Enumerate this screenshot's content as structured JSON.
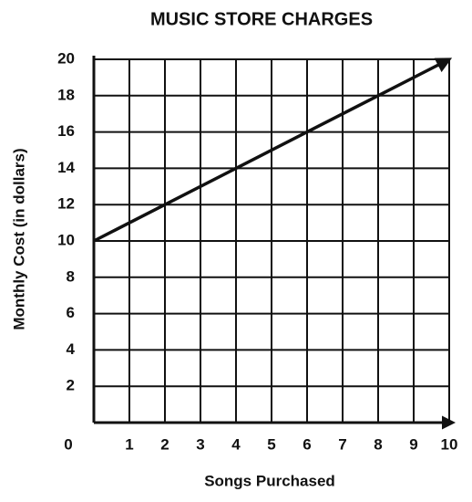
{
  "chart_data": {
    "type": "line",
    "title": "MUSIC STORE CHARGES",
    "x_label": "Songs Purchased",
    "y_label": "Monthly Cost (in dollars)",
    "x": [
      0,
      2,
      4,
      6,
      8,
      10
    ],
    "series": [
      {
        "color": "#111111",
        "values": [
          10,
          12,
          14,
          16,
          18,
          20
        ]
      }
    ],
    "xlim": [
      0,
      10
    ],
    "xticks": [
      0,
      1,
      2,
      3,
      4,
      5,
      6,
      7,
      8,
      9,
      10
    ],
    "ylim": [
      0,
      20
    ],
    "yticks": [
      2,
      4,
      6,
      8,
      10,
      12,
      14,
      16,
      18,
      20
    ],
    "grid": true
  }
}
